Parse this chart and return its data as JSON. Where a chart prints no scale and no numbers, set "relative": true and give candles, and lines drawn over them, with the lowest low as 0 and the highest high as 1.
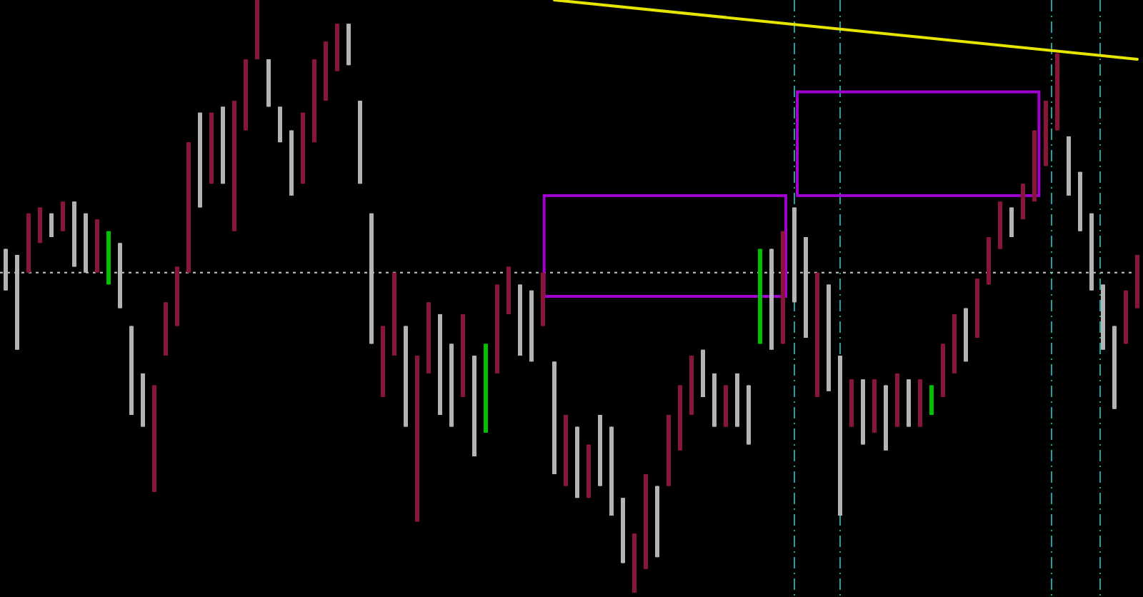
{
  "chart_data": {
    "type": "candlestick",
    "relative": true,
    "categories": [
      null,
      null,
      null,
      null,
      null,
      null,
      null,
      null,
      null,
      null,
      null,
      null,
      null,
      null,
      null,
      null,
      null,
      null,
      null,
      null,
      null,
      null,
      null,
      null,
      null,
      null,
      null,
      null,
      null,
      null,
      null,
      null,
      null,
      null,
      null,
      null,
      null,
      null,
      null,
      null,
      null,
      null,
      null,
      null,
      null,
      null,
      null,
      null,
      null,
      null,
      null,
      null,
      null,
      null,
      null,
      null,
      null,
      null,
      null,
      null,
      null,
      null,
      null,
      null,
      null,
      null,
      null,
      null,
      null,
      null,
      null,
      null,
      null,
      null,
      null,
      null,
      null,
      null,
      null,
      null,
      null,
      null,
      null,
      null,
      null,
      null,
      null,
      null,
      null,
      null,
      null,
      null,
      null,
      null,
      null,
      null,
      null,
      null,
      null,
      null
    ],
    "ohlc": [
      [
        0.58,
        0.58,
        0.51,
        0.51
      ],
      [
        0.57,
        0.57,
        0.41,
        0.41
      ],
      [
        0.54,
        0.64,
        0.54,
        0.64
      ],
      [
        0.59,
        0.65,
        0.59,
        0.65
      ],
      [
        0.64,
        0.64,
        0.6,
        0.6
      ],
      [
        0.61,
        0.66,
        0.61,
        0.66
      ],
      [
        0.66,
        0.66,
        0.55,
        0.55
      ],
      [
        0.64,
        0.64,
        0.54,
        0.54
      ],
      [
        0.54,
        0.63,
        0.54,
        0.63
      ],
      [
        0.52,
        0.61,
        0.52,
        0.61
      ],
      [
        0.59,
        0.59,
        0.48,
        0.48
      ],
      [
        0.45,
        0.45,
        0.3,
        0.3
      ],
      [
        0.37,
        0.37,
        0.28,
        0.28
      ],
      [
        0.17,
        0.35,
        0.17,
        0.35
      ],
      [
        0.4,
        0.49,
        0.4,
        0.49
      ],
      [
        0.45,
        0.55,
        0.45,
        0.55
      ],
      [
        0.54,
        0.76,
        0.54,
        0.76
      ],
      [
        0.81,
        0.81,
        0.65,
        0.65
      ],
      [
        0.69,
        0.81,
        0.69,
        0.81
      ],
      [
        0.82,
        0.82,
        0.69,
        0.69
      ],
      [
        0.61,
        0.83,
        0.61,
        0.83
      ],
      [
        0.78,
        0.9,
        0.78,
        0.9
      ],
      [
        0.9,
        1.0,
        0.9,
        1.0
      ],
      [
        0.9,
        0.9,
        0.82,
        0.82
      ],
      [
        0.82,
        0.82,
        0.76,
        0.76
      ],
      [
        0.78,
        0.78,
        0.67,
        0.67
      ],
      [
        0.69,
        0.81,
        0.69,
        0.81
      ],
      [
        0.76,
        0.9,
        0.76,
        0.9
      ],
      [
        0.83,
        0.93,
        0.83,
        0.93
      ],
      [
        0.88,
        0.96,
        0.88,
        0.96
      ],
      [
        0.96,
        0.96,
        0.89,
        0.89
      ],
      [
        0.83,
        0.83,
        0.69,
        0.69
      ],
      [
        0.64,
        0.64,
        0.42,
        0.42
      ],
      [
        0.33,
        0.45,
        0.33,
        0.45
      ],
      [
        0.4,
        0.54,
        0.4,
        0.54
      ],
      [
        0.45,
        0.45,
        0.28,
        0.28
      ],
      [
        0.12,
        0.4,
        0.12,
        0.4
      ],
      [
        0.37,
        0.49,
        0.37,
        0.49
      ],
      [
        0.47,
        0.47,
        0.3,
        0.3
      ],
      [
        0.42,
        0.42,
        0.28,
        0.28
      ],
      [
        0.33,
        0.47,
        0.33,
        0.47
      ],
      [
        0.4,
        0.4,
        0.23,
        0.23
      ],
      [
        0.27,
        0.42,
        0.27,
        0.42
      ],
      [
        0.37,
        0.52,
        0.37,
        0.52
      ],
      [
        0.47,
        0.55,
        0.47,
        0.55
      ],
      [
        0.52,
        0.52,
        0.4,
        0.4
      ],
      [
        0.51,
        0.51,
        0.39,
        0.39
      ],
      [
        0.45,
        0.54,
        0.45,
        0.54
      ],
      [
        0.39,
        0.39,
        0.2,
        0.2
      ],
      [
        0.18,
        0.3,
        0.18,
        0.3
      ],
      [
        0.28,
        0.28,
        0.16,
        0.16
      ],
      [
        0.16,
        0.25,
        0.16,
        0.25
      ],
      [
        0.3,
        0.3,
        0.18,
        0.18
      ],
      [
        0.28,
        0.28,
        0.13,
        0.13
      ],
      [
        0.16,
        0.16,
        0.05,
        0.05
      ],
      [
        0.0,
        0.1,
        0.0,
        0.1
      ],
      [
        0.04,
        0.2,
        0.04,
        0.2
      ],
      [
        0.18,
        0.18,
        0.06,
        0.06
      ],
      [
        0.18,
        0.3,
        0.18,
        0.3
      ],
      [
        0.24,
        0.35,
        0.24,
        0.35
      ],
      [
        0.3,
        0.4,
        0.3,
        0.4
      ],
      [
        0.41,
        0.41,
        0.33,
        0.33
      ],
      [
        0.37,
        0.37,
        0.28,
        0.28
      ],
      [
        0.28,
        0.35,
        0.28,
        0.35
      ],
      [
        0.37,
        0.37,
        0.28,
        0.28
      ],
      [
        0.35,
        0.35,
        0.25,
        0.25
      ],
      [
        0.42,
        0.58,
        0.42,
        0.58
      ],
      [
        0.58,
        0.58,
        0.41,
        0.41
      ],
      [
        0.42,
        0.61,
        0.42,
        0.61
      ],
      [
        0.65,
        0.65,
        0.49,
        0.49
      ],
      [
        0.6,
        0.6,
        0.43,
        0.43
      ],
      [
        0.33,
        0.54,
        0.33,
        0.54
      ],
      [
        0.52,
        0.52,
        0.34,
        0.34
      ],
      [
        0.4,
        0.4,
        0.13,
        0.13
      ],
      [
        0.28,
        0.36,
        0.28,
        0.36
      ],
      [
        0.36,
        0.36,
        0.25,
        0.25
      ],
      [
        0.27,
        0.36,
        0.27,
        0.36
      ],
      [
        0.35,
        0.35,
        0.24,
        0.24
      ],
      [
        0.28,
        0.37,
        0.28,
        0.37
      ],
      [
        0.36,
        0.36,
        0.28,
        0.28
      ],
      [
        0.28,
        0.36,
        0.28,
        0.36
      ],
      [
        0.3,
        0.35,
        0.3,
        0.35
      ],
      [
        0.33,
        0.42,
        0.33,
        0.42
      ],
      [
        0.37,
        0.47,
        0.37,
        0.47
      ],
      [
        0.48,
        0.48,
        0.39,
        0.39
      ],
      [
        0.43,
        0.53,
        0.43,
        0.53
      ],
      [
        0.52,
        0.6,
        0.52,
        0.6
      ],
      [
        0.58,
        0.66,
        0.58,
        0.66
      ],
      [
        0.65,
        0.65,
        0.6,
        0.6
      ],
      [
        0.63,
        0.69,
        0.63,
        0.69
      ],
      [
        0.66,
        0.78,
        0.66,
        0.78
      ],
      [
        0.72,
        0.83,
        0.72,
        0.83
      ],
      [
        0.78,
        0.91,
        0.78,
        0.91
      ],
      [
        0.77,
        0.77,
        0.67,
        0.67
      ],
      [
        0.71,
        0.71,
        0.61,
        0.61
      ],
      [
        0.64,
        0.64,
        0.51,
        0.51
      ],
      [
        0.52,
        0.52,
        0.41,
        0.41
      ],
      [
        0.45,
        0.45,
        0.31,
        0.31
      ],
      [
        0.42,
        0.51,
        0.42,
        0.51
      ],
      [
        0.48,
        0.57,
        0.48,
        0.57
      ]
    ],
    "colors": [
      "#b4b4b4",
      "#b4b4b4",
      "#8b1538",
      "#8b1538",
      "#b4b4b4",
      "#8b1538",
      "#b4b4b4",
      "#b4b4b4",
      "#8b1538",
      "#00c000",
      "#b4b4b4",
      "#b4b4b4",
      "#b4b4b4",
      "#8b1538",
      "#8b1538",
      "#8b1538",
      "#8b1538",
      "#b4b4b4",
      "#8b1538",
      "#b4b4b4",
      "#8b1538",
      "#8b1538",
      "#8b1538",
      "#b4b4b4",
      "#b4b4b4",
      "#b4b4b4",
      "#8b1538",
      "#8b1538",
      "#8b1538",
      "#8b1538",
      "#b4b4b4",
      "#b4b4b4",
      "#b4b4b4",
      "#8b1538",
      "#8b1538",
      "#b4b4b4",
      "#8b1538",
      "#8b1538",
      "#b4b4b4",
      "#b4b4b4",
      "#8b1538",
      "#b4b4b4",
      "#00c000",
      "#8b1538",
      "#8b1538",
      "#b4b4b4",
      "#b4b4b4",
      "#8b1538",
      "#b4b4b4",
      "#8b1538",
      "#b4b4b4",
      "#8b1538",
      "#b4b4b4",
      "#b4b4b4",
      "#b4b4b4",
      "#8b1538",
      "#8b1538",
      "#b4b4b4",
      "#8b1538",
      "#8b1538",
      "#8b1538",
      "#b4b4b4",
      "#b4b4b4",
      "#8b1538",
      "#b4b4b4",
      "#b4b4b4",
      "#00c000",
      "#b4b4b4",
      "#8b1538",
      "#b4b4b4",
      "#b4b4b4",
      "#8b1538",
      "#b4b4b4",
      "#b4b4b4",
      "#8b1538",
      "#b4b4b4",
      "#8b1538",
      "#b4b4b4",
      "#8b1538",
      "#b4b4b4",
      "#8b1538",
      "#00c000",
      "#8b1538",
      "#8b1538",
      "#b4b4b4",
      "#8b1538",
      "#8b1538",
      "#8b1538",
      "#b4b4b4",
      "#8b1538",
      "#8b1538",
      "#8b1538",
      "#8b1538",
      "#b4b4b4",
      "#b4b4b4",
      "#b4b4b4",
      "#b4b4b4",
      "#b4b4b4",
      "#8b1538",
      "#8b1538"
    ],
    "series": [
      {
        "type": "line",
        "color": "#e6e600",
        "values": [
          null,
          null,
          null,
          null,
          null,
          null,
          null,
          null,
          null,
          null,
          null,
          null,
          null,
          null,
          null,
          null,
          null,
          null,
          null,
          null,
          null,
          null,
          null,
          null,
          null,
          null,
          null,
          null,
          null,
          null,
          null,
          null,
          null,
          null,
          null,
          null,
          null,
          null,
          null,
          null,
          null,
          null,
          null,
          null,
          null,
          null,
          null,
          null,
          1.0,
          null,
          null,
          null,
          null,
          null,
          null,
          null,
          null,
          null,
          null,
          null,
          null,
          null,
          null,
          null,
          null,
          null,
          null,
          null,
          null,
          null,
          null,
          null,
          null,
          null,
          null,
          null,
          null,
          null,
          null,
          null,
          null,
          null,
          null,
          null,
          null,
          null,
          null,
          null,
          null,
          null,
          null,
          null,
          null,
          null,
          null,
          null,
          null,
          null,
          null,
          0.9
        ]
      }
    ],
    "ref_lines": [
      {
        "axis": "y",
        "value": 0.54,
        "color": "#c8c8c8",
        "line_style": "dotted"
      }
    ]
  }
}
